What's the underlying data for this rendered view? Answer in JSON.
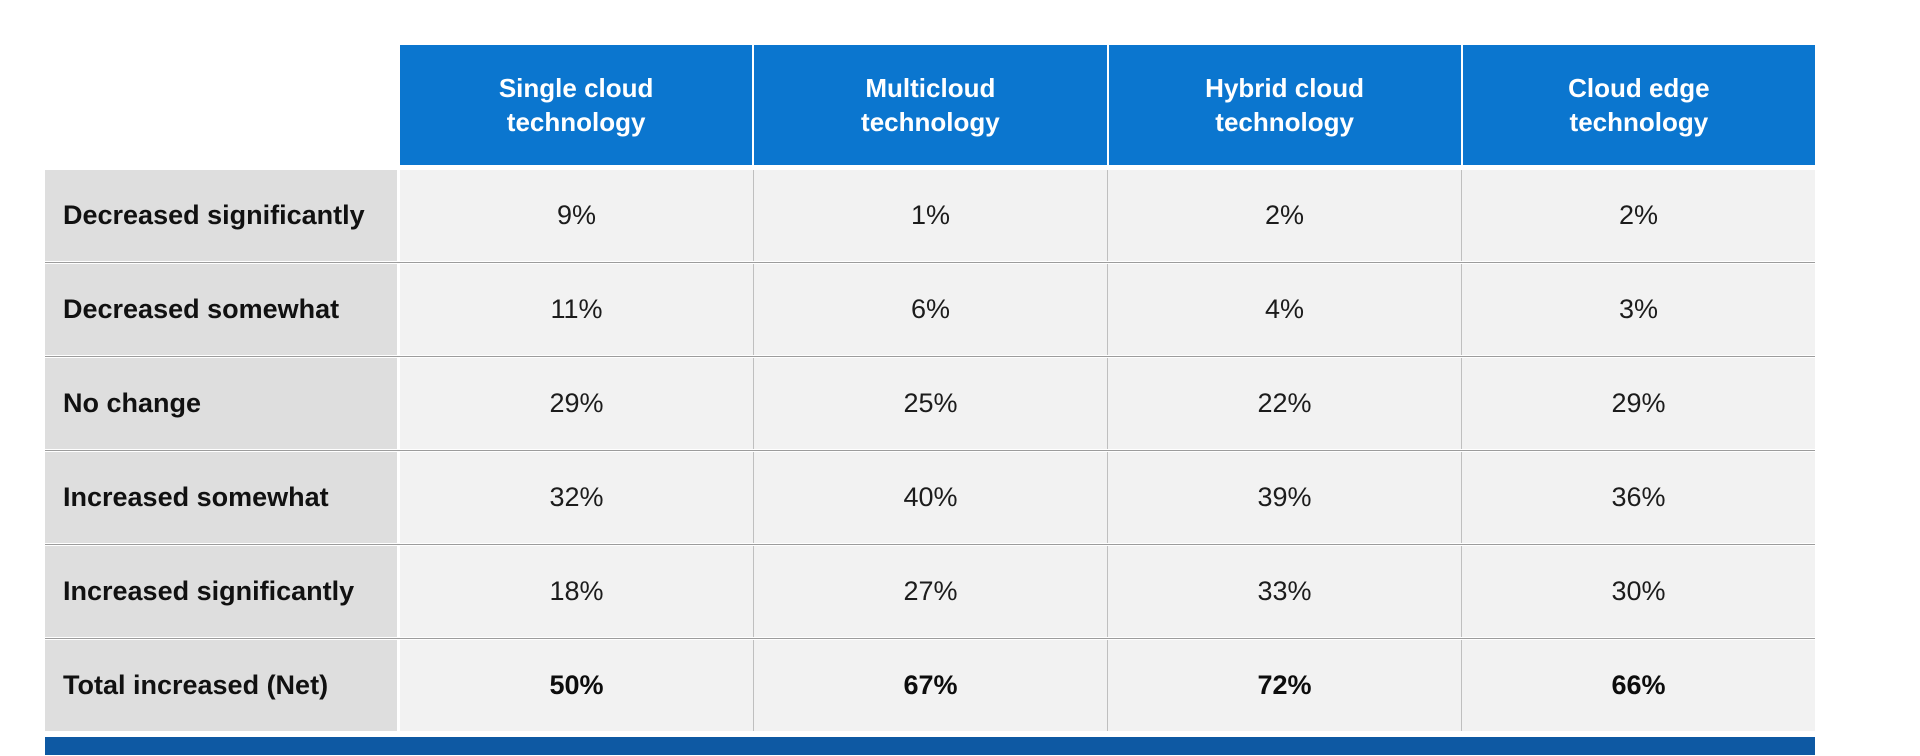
{
  "chart_data": {
    "type": "table",
    "columns": [
      "Single cloud technology",
      "Multicloud technology",
      "Hybrid cloud technology",
      "Cloud edge technology"
    ],
    "row_labels": [
      "Decreased significantly",
      "Decreased somewhat",
      "No change",
      "Increased somewhat",
      "Increased significantly",
      "Total increased (Net)"
    ],
    "values_percent": [
      [
        9,
        1,
        2,
        2
      ],
      [
        11,
        6,
        4,
        3
      ],
      [
        29,
        25,
        22,
        29
      ],
      [
        32,
        40,
        39,
        36
      ],
      [
        18,
        27,
        33,
        30
      ],
      [
        50,
        67,
        72,
        66
      ]
    ],
    "legend_position": "none",
    "grid": "cell-borders"
  },
  "table": {
    "columns": [
      "Single cloud\ntechnology",
      "Multicloud\ntechnology",
      "Hybrid cloud\ntechnology",
      "Cloud edge\ntechnology"
    ],
    "rows": [
      {
        "label": "Decreased significantly",
        "values": [
          "9%",
          "1%",
          "2%",
          "2%"
        ]
      },
      {
        "label": "Decreased somewhat",
        "values": [
          "11%",
          "6%",
          "4%",
          "3%"
        ]
      },
      {
        "label": "No change",
        "values": [
          "29%",
          "25%",
          "22%",
          "29%"
        ]
      },
      {
        "label": "Increased somewhat",
        "values": [
          "32%",
          "40%",
          "39%",
          "36%"
        ]
      },
      {
        "label": "Increased significantly",
        "values": [
          "18%",
          "27%",
          "33%",
          "30%"
        ]
      },
      {
        "label": "Total increased (Net)",
        "values": [
          "50%",
          "67%",
          "72%",
          "66%"
        ]
      }
    ],
    "colors": {
      "header_bg": "#0b76cf",
      "accent_bar": "#0e59a3",
      "label_bg": "#dedede",
      "cell_bg": "#f2f2f2"
    }
  }
}
